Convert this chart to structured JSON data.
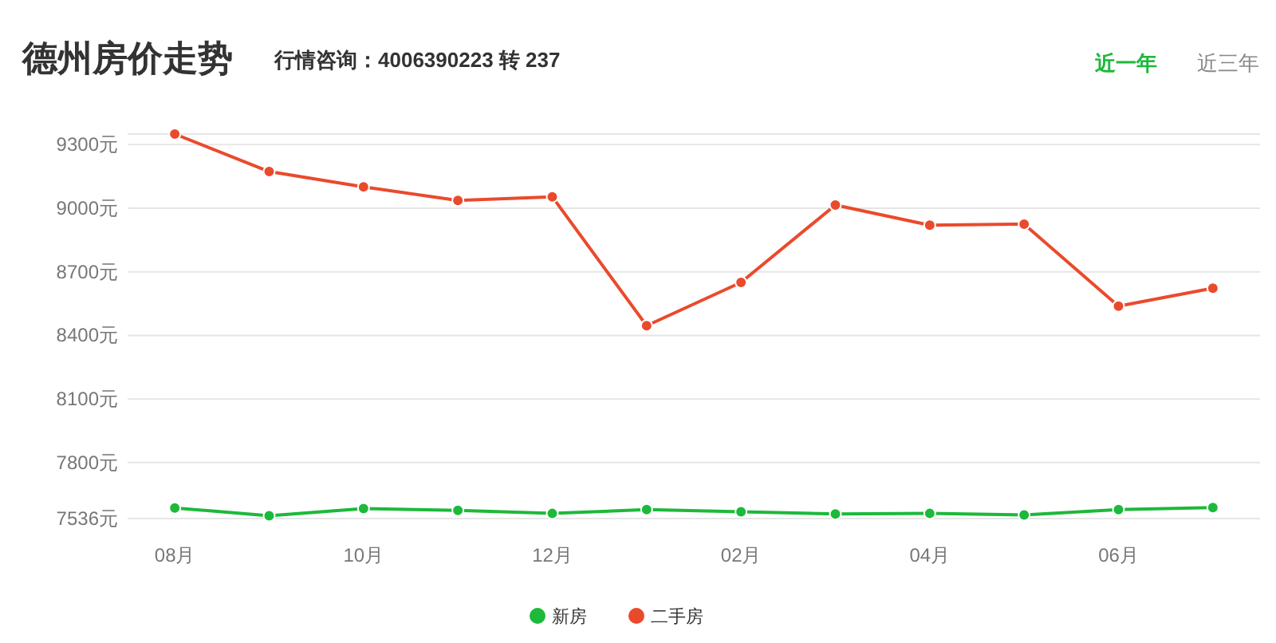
{
  "chart_data": {
    "type": "line",
    "title": "德州房价走势",
    "subtitle": "行情咨询：4006390223 转 237",
    "annotations": [
      "近一年",
      "近三年"
    ],
    "categories": [
      "08月",
      null,
      "10月",
      null,
      "12月",
      null,
      "02月",
      null,
      "04月",
      null,
      "06月",
      null
    ],
    "series": [
      {
        "name": "新房",
        "color": "#1cb93b",
        "values": [
          7586,
          7549,
          7583,
          7575,
          7560,
          7578,
          7568,
          7558,
          7560,
          7553,
          7578,
          7588
        ]
      },
      {
        "name": "二手房",
        "color": "#ea4a2c",
        "values": [
          9350,
          9173,
          9101,
          9037,
          9054,
          8446,
          8650,
          9015,
          8920,
          8925,
          8538,
          8623
        ]
      }
    ],
    "ylim": [
      7536,
      9350
    ],
    "yticks": [
      {
        "value": 7536,
        "label": "7536元"
      },
      {
        "value": 7800,
        "label": "7800元"
      },
      {
        "value": 8100,
        "label": "8100元"
      },
      {
        "value": 8400,
        "label": "8400元"
      },
      {
        "value": 8700,
        "label": "8700元"
      },
      {
        "value": 9000,
        "label": "9000元"
      },
      {
        "value": 9300,
        "label": "9300元"
      },
      {
        "value": 9350,
        "label": null
      }
    ],
    "grid": "y",
    "legend": "bottom",
    "marker": "circle",
    "line_style": "solid"
  }
}
